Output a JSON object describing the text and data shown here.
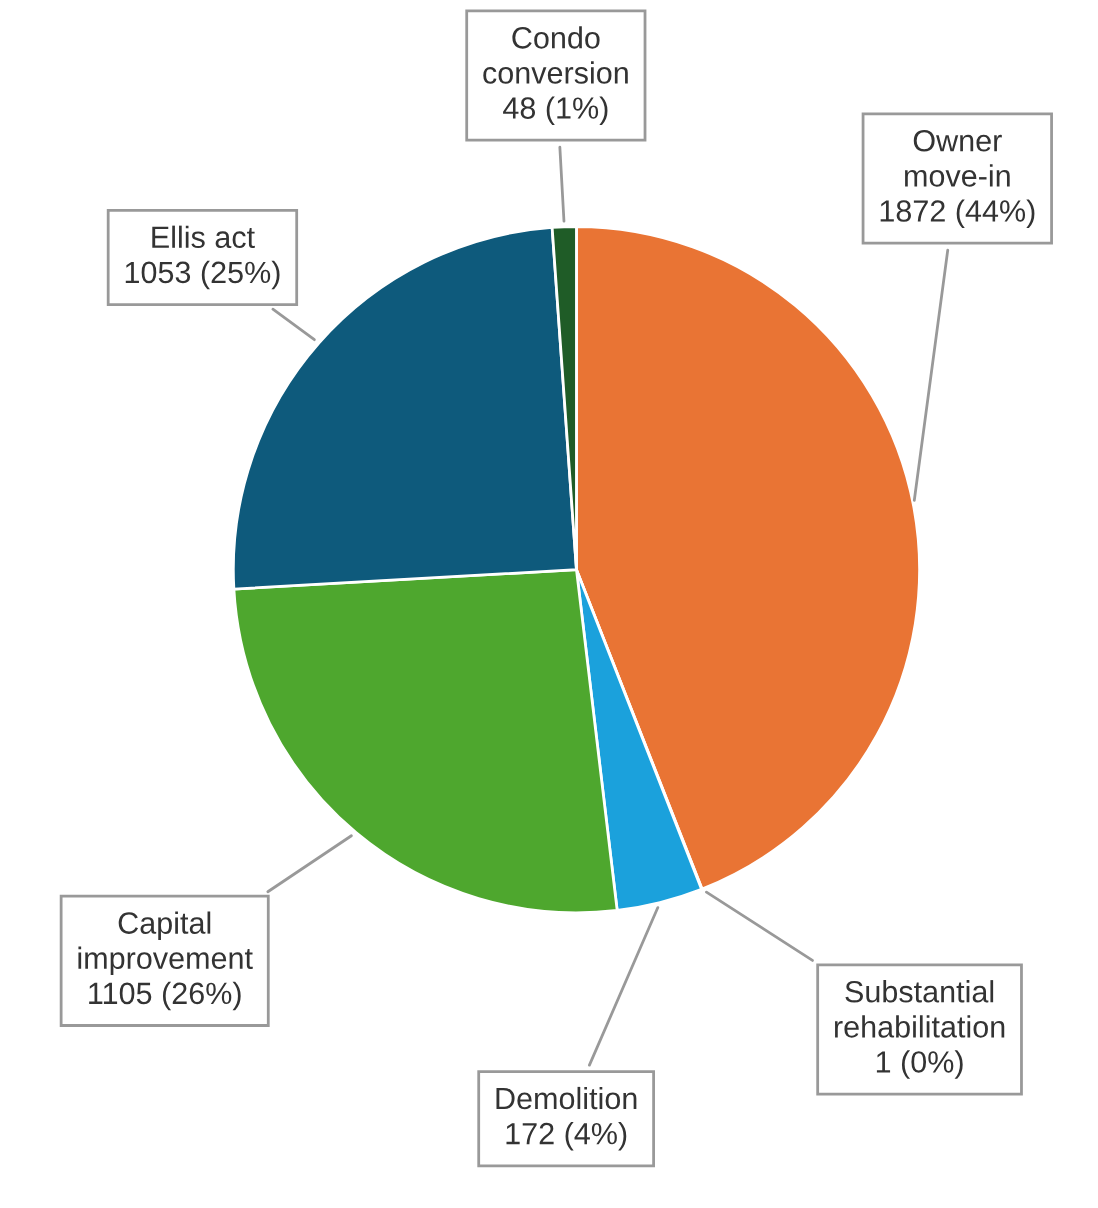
{
  "chart_data": {
    "type": "pie",
    "categories": [
      "Owner\nmove-in",
      "Substantial\nrehabilitation",
      "Demolition",
      "Capital\nimprovement",
      "Ellis act",
      "Condo\nconversion"
    ],
    "values": [
      1872,
      1,
      172,
      1105,
      1053,
      48
    ],
    "colors": [
      "#e97434",
      "#8a8a8a",
      "#1ba1dc",
      "#4ea72e",
      "#0e5a7c",
      "#1f5c27"
    ],
    "value_labels": [
      "1872 (44%)",
      "1 (0%)",
      "172 (4%)",
      "1105 (26%)",
      "1053 (25%)",
      "48 (1%)"
    ]
  }
}
